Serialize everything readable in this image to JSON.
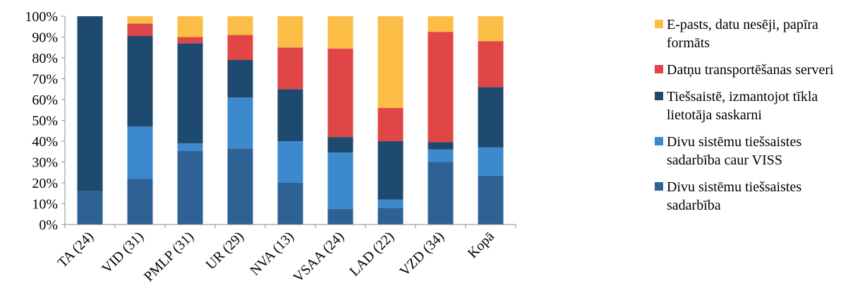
{
  "chart_data": {
    "type": "bar",
    "stacked": true,
    "percent": true,
    "categories": [
      "TA (24)",
      "VID (31)",
      "PMLP (31)",
      "UR (29)",
      "NVA (13)",
      "VSAA (24)",
      "LAD (22)",
      "VZD (34)",
      "Kopā"
    ],
    "yticks": [
      "0%",
      "10%",
      "20%",
      "30%",
      "40%",
      "50%",
      "60%",
      "70%",
      "80%",
      "90%",
      "100%"
    ],
    "ylim": [
      0,
      100
    ],
    "legend_position": "right",
    "series": [
      {
        "name": "Divu sistēmu tiešsaistes sadarbība",
        "color": "#2e6295",
        "values": [
          16,
          22,
          35.5,
          36.5,
          20,
          7.5,
          8,
          30,
          23.5
        ]
      },
      {
        "name": "Divu sistēmu tiešsaistes sadarbība caur VISS",
        "color": "#3d89cd",
        "values": [
          0,
          25,
          3.5,
          24.5,
          20,
          27,
          4,
          6,
          13.5
        ]
      },
      {
        "name": "Tiešsaistē, izmantojot tīkla lietotāja saskarni",
        "color": "#1f4a6f",
        "values": [
          84,
          43.5,
          48,
          18,
          25,
          7.5,
          28,
          3.5,
          29
        ]
      },
      {
        "name": "Datņu transportēšanas serveri",
        "color": "#e04646",
        "values": [
          0,
          6,
          3,
          12,
          20,
          42.5,
          16,
          53,
          22
        ]
      },
      {
        "name": "E-pasts, datu nesēji, papīra formāts",
        "color": "#fbbd45",
        "values": [
          0,
          3.5,
          10,
          9,
          15,
          15.5,
          44,
          7.5,
          12
        ]
      }
    ]
  }
}
